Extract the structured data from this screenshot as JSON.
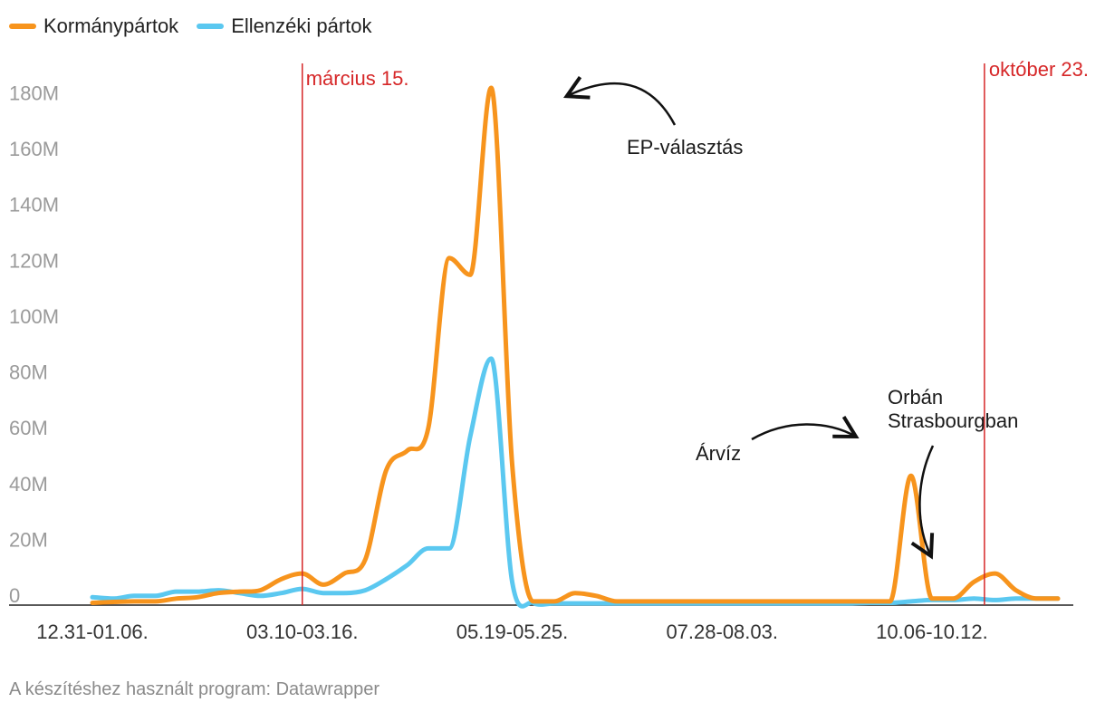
{
  "colors": {
    "government": "#f7941d",
    "opposition": "#5bc8f0",
    "marker": "#d62728",
    "annotation": "#111111"
  },
  "footer": "A készítéshez használt program: Datawrapper",
  "chart_data": {
    "type": "line",
    "grid": false,
    "legend_position": "top-left",
    "ylim": [
      0,
      190
    ],
    "y_unit": "M",
    "y_ticks": [
      {
        "value": 0,
        "label": "0"
      },
      {
        "value": 20,
        "label": "20M"
      },
      {
        "value": 40,
        "label": "40M"
      },
      {
        "value": 60,
        "label": "60M"
      },
      {
        "value": 80,
        "label": "80M"
      },
      {
        "value": 100,
        "label": "100M"
      },
      {
        "value": 120,
        "label": "120M"
      },
      {
        "value": 140,
        "label": "140M"
      },
      {
        "value": 160,
        "label": "160M"
      },
      {
        "value": 180,
        "label": "180M"
      }
    ],
    "x_tick_labels": [
      {
        "index": 0,
        "label": "12.31-01.06."
      },
      {
        "index": 10,
        "label": "03.10-03.16."
      },
      {
        "index": 20,
        "label": "05.19-05.25."
      },
      {
        "index": 30,
        "label": "07.28-08.03."
      },
      {
        "index": 40,
        "label": "10.06-10.12."
      }
    ],
    "series": [
      {
        "name": "Kormánypártok",
        "color_key": "government",
        "values": [
          0.5,
          0.8,
          1,
          1,
          2,
          2.5,
          4,
          4.5,
          5,
          9,
          11,
          7,
          11,
          16,
          48,
          55,
          63,
          124,
          118,
          185,
          50,
          1,
          1,
          4,
          3,
          1,
          1,
          1,
          1,
          1,
          1,
          1,
          1,
          1,
          1,
          1,
          1,
          1,
          1,
          46,
          2,
          2,
          8,
          11,
          5,
          2,
          2
        ]
      },
      {
        "name": "Ellenzéki pártok",
        "color_key": "opposition",
        "values": [
          2.5,
          2,
          3,
          3,
          4.5,
          4.5,
          5,
          4,
          3,
          4,
          5.5,
          4,
          4,
          5,
          9,
          14,
          20,
          20,
          60,
          88,
          8,
          0.5,
          0.3,
          0.3,
          0.3,
          0.3,
          0.3,
          0.3,
          0.3,
          0.3,
          0.3,
          0.3,
          0.3,
          0.3,
          0.3,
          0.3,
          0.3,
          0.5,
          0.5,
          1,
          1.5,
          1.5,
          2,
          1.5,
          2,
          2,
          2
        ]
      }
    ],
    "markers": [
      {
        "index": 10,
        "label": "március 15."
      },
      {
        "index": 42.5,
        "label": "október 23."
      }
    ],
    "annotations": [
      {
        "lines": [
          "EP-választás"
        ],
        "target_index": 22.6,
        "target_value": 182
      },
      {
        "lines": [
          "Árvíz"
        ],
        "target_index": 40,
        "target_value": 58
      },
      {
        "lines": [
          "Orbán",
          "Strasbourgban"
        ],
        "target_index": 45.8,
        "target_value": 18
      }
    ]
  }
}
